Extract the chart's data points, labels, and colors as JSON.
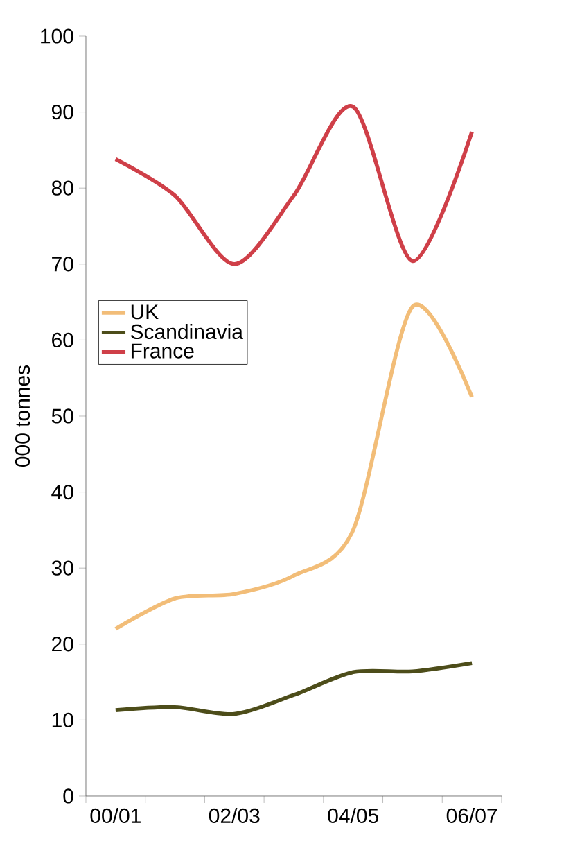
{
  "chart_data": {
    "type": "line",
    "ylabel": "000 tonnes",
    "categories": [
      "00/01",
      null,
      "02/03",
      null,
      "04/05",
      null,
      "06/07"
    ],
    "series": [
      {
        "name": "UK",
        "color": "#f2bd78",
        "values": [
          22,
          26,
          26.6,
          29,
          35,
          64.4,
          52.5
        ]
      },
      {
        "name": "Scandinavia",
        "color": "#4d4d1a",
        "values": [
          11.3,
          11.7,
          10.8,
          13.3,
          16.3,
          16.4,
          17.5
        ]
      },
      {
        "name": "France",
        "color": "#cf3f48",
        "values": [
          83.8,
          79,
          70,
          79,
          90.7,
          70.4,
          87.4
        ]
      }
    ],
    "ylim": [
      0,
      100
    ],
    "yticks": [
      0,
      10,
      20,
      30,
      40,
      50,
      60,
      70,
      80,
      90,
      100
    ],
    "grid": false,
    "legend": "left",
    "marker": "none",
    "line_style": "solid"
  }
}
